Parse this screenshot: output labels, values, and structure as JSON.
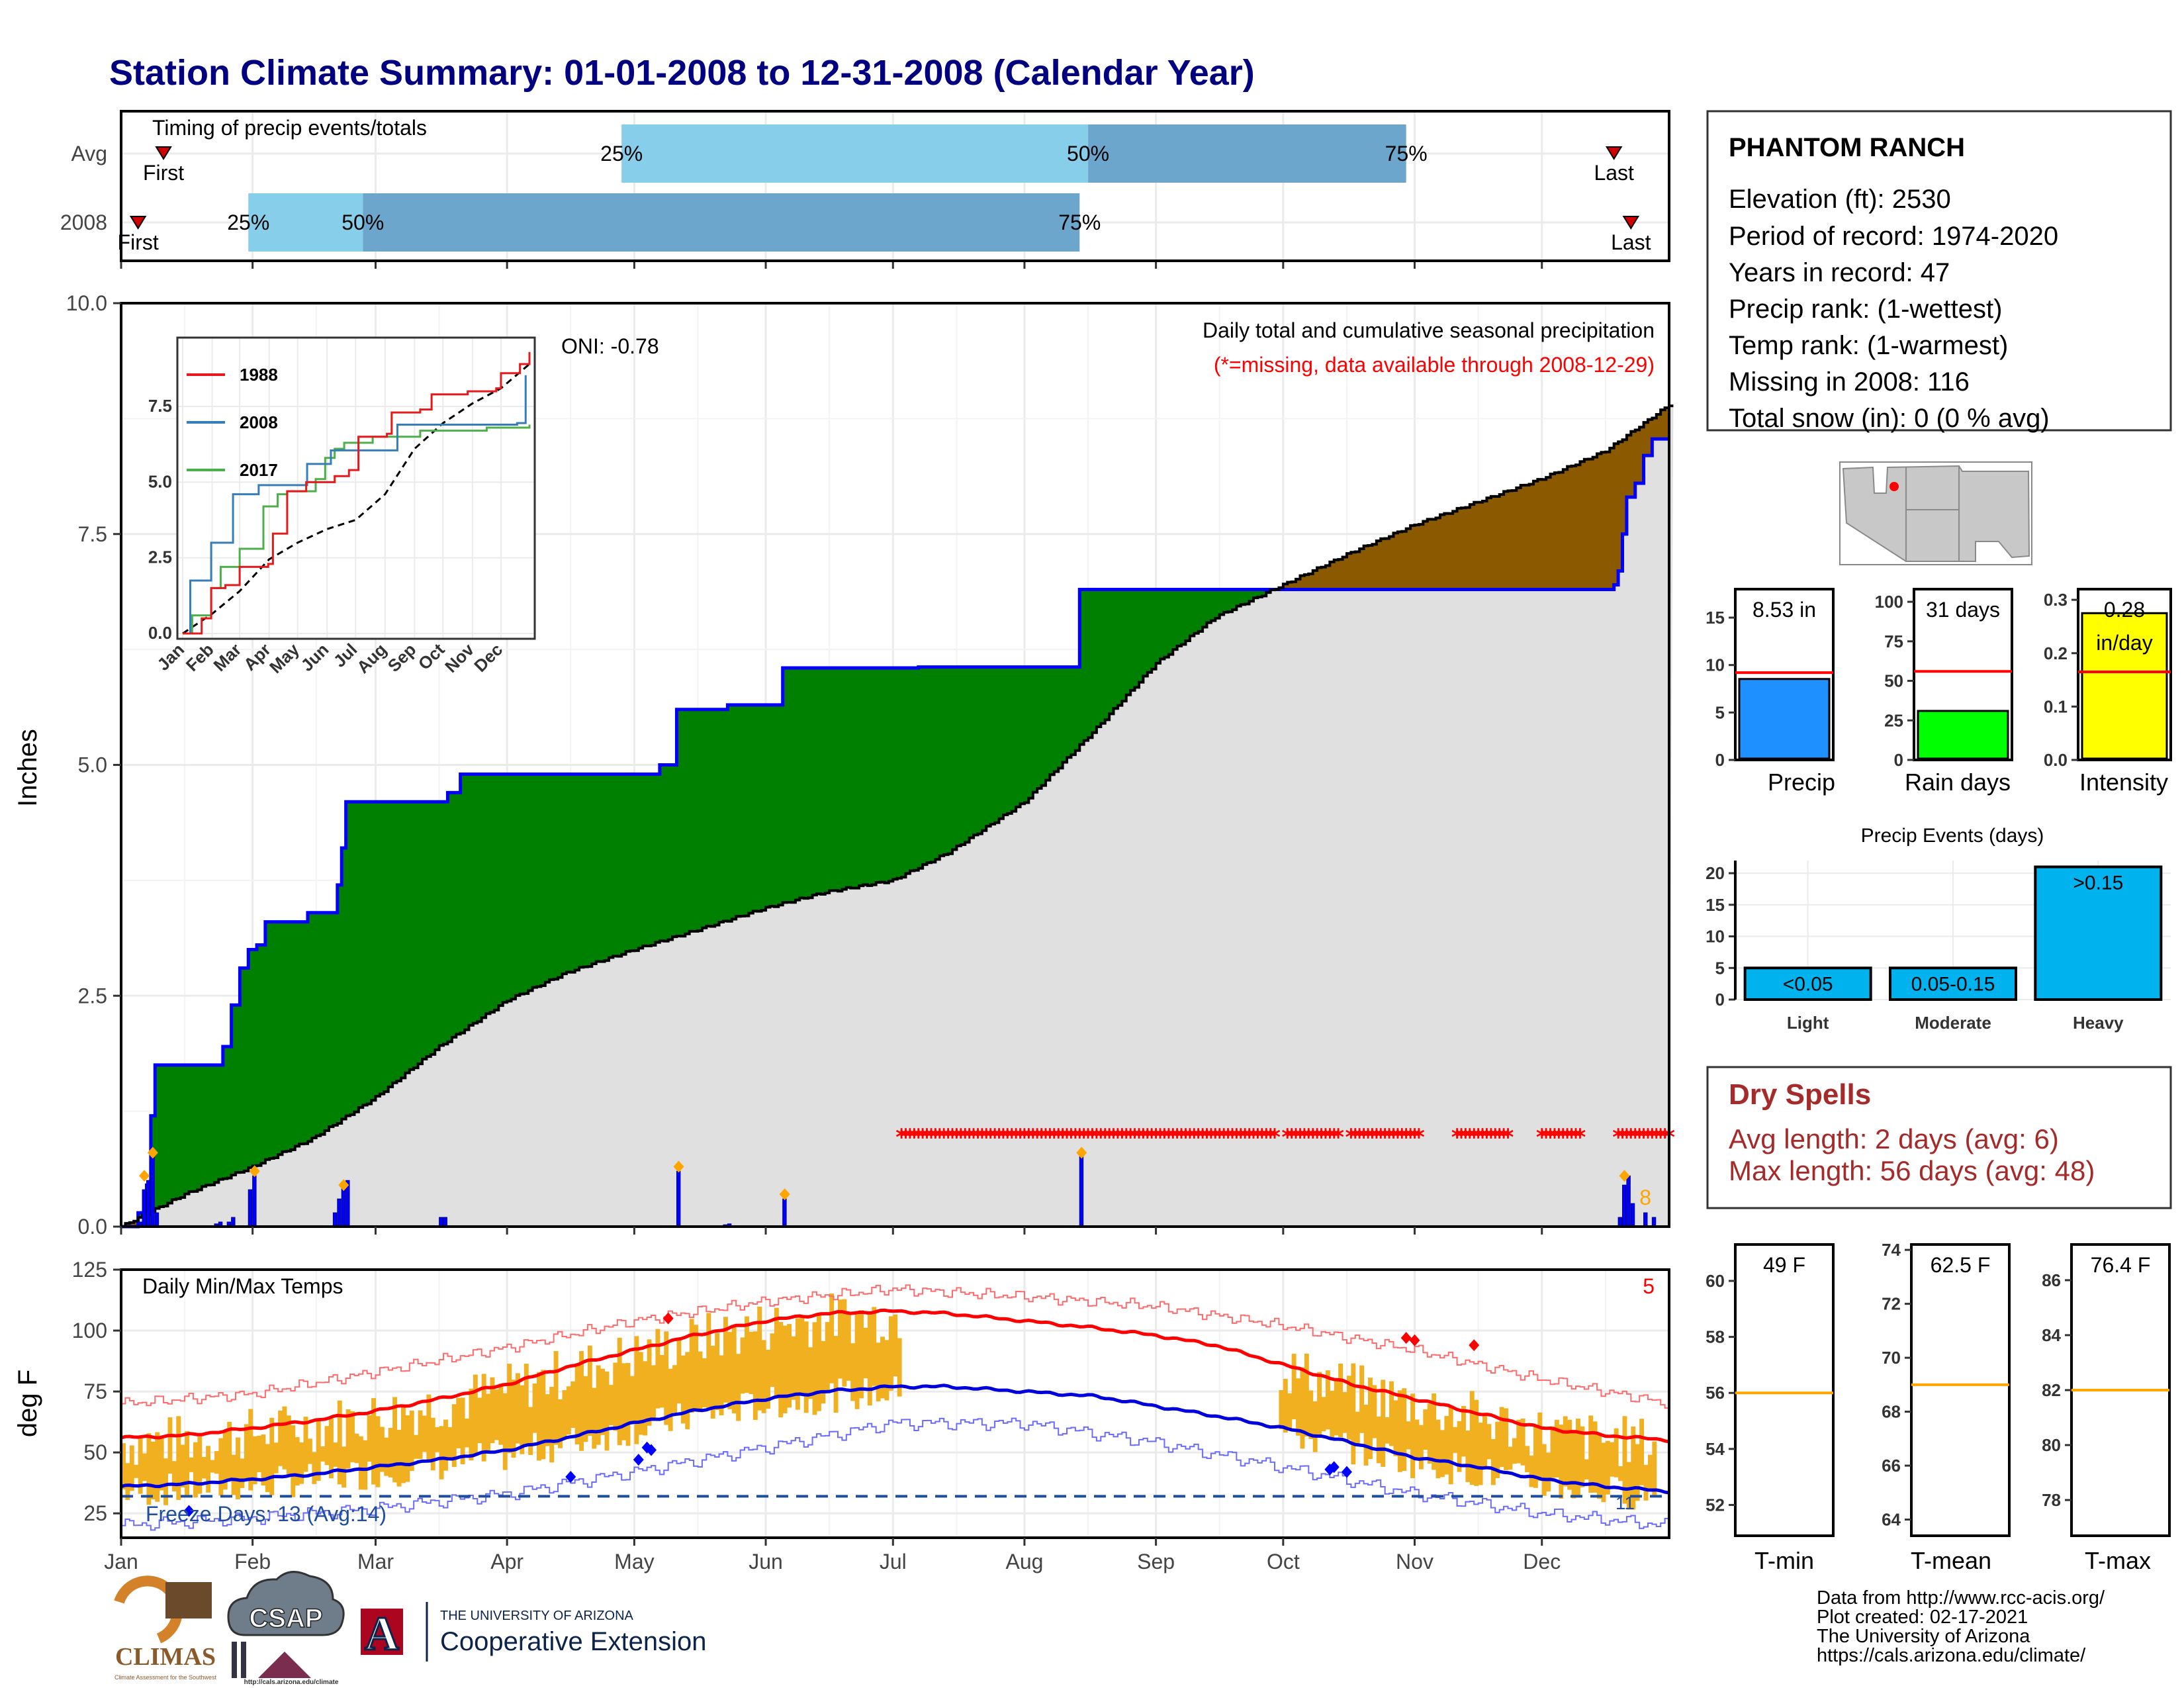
{
  "title": "Station Climate Summary: 01-01-2008 to 12-31-2008 (Calendar Year)",
  "colors": {
    "title": "#000080",
    "green": "#008000",
    "brown": "#8b5a00",
    "grey": "#e0e0e0",
    "blue": "#0000ff",
    "dry": "#a52a2a",
    "light_blue": "#87ceeb",
    "mid_blue": "#6ca6cd",
    "bar_orange": "#f0b020"
  },
  "timing": {
    "title": "Timing of precip events/totals",
    "rows": [
      {
        "label": "Avg",
        "first_day": 10,
        "p25": 118,
        "p50": 228,
        "p75": 303,
        "last_day": 352,
        "first_text": "First",
        "last_text": "Last"
      },
      {
        "label": "2008",
        "first_day": 4,
        "p25": 30,
        "p50": 57,
        "p75": 226,
        "last_day": 356,
        "first_text": "First",
        "last_text": "Last"
      }
    ],
    "pct_labels": [
      "25%",
      "50%",
      "75%"
    ]
  },
  "chart_data": [
    {
      "type": "area",
      "name": "precip",
      "title": "Daily total and cumulative seasonal precipitation",
      "subtitle": "(*=missing, data available through 2008-12-29)",
      "ylabel": "Inches",
      "ylim": [
        0,
        10
      ],
      "yticks": [
        "0.0",
        "2.5",
        "5.0",
        "7.5",
        "10.0"
      ],
      "oni": "ONI: -0.78",
      "corner_count": "8",
      "cumulative_2008_steps": [
        [
          0,
          0
        ],
        [
          4,
          0.15
        ],
        [
          6,
          0.45
        ],
        [
          7,
          1.2
        ],
        [
          8,
          1.75
        ],
        [
          22,
          1.75
        ],
        [
          24,
          1.95
        ],
        [
          26,
          2.4
        ],
        [
          28,
          2.8
        ],
        [
          30,
          3.0
        ],
        [
          32,
          3.05
        ],
        [
          34,
          3.3
        ],
        [
          43,
          3.3
        ],
        [
          44,
          3.4
        ],
        [
          50,
          3.4
        ],
        [
          51,
          3.7
        ],
        [
          52,
          4.1
        ],
        [
          53,
          4.6
        ],
        [
          76,
          4.6
        ],
        [
          77,
          4.7
        ],
        [
          80,
          4.9
        ],
        [
          126,
          4.9
        ],
        [
          127,
          5.0
        ],
        [
          131,
          5.6
        ],
        [
          141,
          5.6
        ],
        [
          143,
          5.65
        ],
        [
          155,
          5.65
        ],
        [
          156,
          6.05
        ],
        [
          186,
          6.05
        ],
        [
          188,
          6.06
        ],
        [
          225,
          6.06
        ],
        [
          226,
          6.9
        ],
        [
          352,
          6.95
        ],
        [
          353,
          7.1
        ],
        [
          354,
          7.5
        ],
        [
          355,
          7.9
        ],
        [
          357,
          8.05
        ],
        [
          359,
          8.35
        ],
        [
          361,
          8.53
        ]
      ],
      "cumulative_avg": [
        [
          0,
          0
        ],
        [
          15,
          0.35
        ],
        [
          31,
          0.65
        ],
        [
          45,
          0.95
        ],
        [
          60,
          1.4
        ],
        [
          75,
          1.95
        ],
        [
          91,
          2.45
        ],
        [
          105,
          2.75
        ],
        [
          121,
          3.0
        ],
        [
          135,
          3.2
        ],
        [
          152,
          3.45
        ],
        [
          166,
          3.62
        ],
        [
          182,
          3.75
        ],
        [
          195,
          4.05
        ],
        [
          213,
          4.6
        ],
        [
          230,
          5.4
        ],
        [
          244,
          6.1
        ],
        [
          258,
          6.6
        ],
        [
          274,
          6.95
        ],
        [
          290,
          7.3
        ],
        [
          305,
          7.6
        ],
        [
          320,
          7.85
        ],
        [
          335,
          8.1
        ],
        [
          350,
          8.4
        ],
        [
          365,
          8.9
        ]
      ],
      "daily_bars": [
        [
          4,
          0.05
        ],
        [
          5,
          0.4
        ],
        [
          6,
          0.5
        ],
        [
          7,
          0.75
        ],
        [
          8,
          0.15
        ],
        [
          22,
          0.03
        ],
        [
          23,
          0.05
        ],
        [
          25,
          0.05
        ],
        [
          26,
          0.1
        ],
        [
          30,
          0.4
        ],
        [
          31,
          0.55
        ],
        [
          50,
          0.15
        ],
        [
          51,
          0.3
        ],
        [
          52,
          0.45
        ],
        [
          53,
          0.5
        ],
        [
          75,
          0.1
        ],
        [
          76,
          0.1
        ],
        [
          131,
          0.6
        ],
        [
          142,
          0.02
        ],
        [
          143,
          0.03
        ],
        [
          156,
          0.3
        ],
        [
          226,
          0.8
        ],
        [
          353,
          0.1
        ],
        [
          354,
          0.45
        ],
        [
          355,
          0.55
        ],
        [
          356,
          0.25
        ],
        [
          359,
          0.15
        ],
        [
          361,
          0.1
        ]
      ],
      "diamonds": [
        [
          5,
          0.55
        ],
        [
          7,
          0.8
        ],
        [
          31,
          0.6
        ],
        [
          52,
          0.45
        ],
        [
          131,
          0.65
        ],
        [
          156,
          0.35
        ],
        [
          226,
          0.8
        ],
        [
          354,
          0.55
        ]
      ],
      "missing_stars": [
        [
          184,
          272
        ],
        [
          275,
          287
        ],
        [
          290,
          306
        ],
        [
          315,
          327
        ],
        [
          335,
          344
        ],
        [
          353,
          361
        ],
        [
          362,
          365
        ]
      ],
      "inset": {
        "legend": [
          "1988",
          "2008",
          "2017"
        ],
        "legend_colors": [
          "#e41a1c",
          "#377eb8",
          "#4daf4a"
        ],
        "yticks": [
          "0.0",
          "2.5",
          "5.0",
          "7.5"
        ],
        "xticks": [
          "Jan",
          "Feb",
          "Mar",
          "Apr",
          "May",
          "Jun",
          "Jul",
          "Aug",
          "Sep",
          "Oct",
          "Nov",
          "Dec"
        ],
        "series_1988": [
          [
            0,
            0
          ],
          [
            20,
            0.5
          ],
          [
            30,
            1.5
          ],
          [
            45,
            1.6
          ],
          [
            60,
            2.2
          ],
          [
            90,
            2.3
          ],
          [
            95,
            3.3
          ],
          [
            110,
            4.7
          ],
          [
            130,
            5.0
          ],
          [
            160,
            5.2
          ],
          [
            175,
            5.4
          ],
          [
            185,
            6.5
          ],
          [
            215,
            6.6
          ],
          [
            220,
            7.3
          ],
          [
            250,
            7.4
          ],
          [
            262,
            7.9
          ],
          [
            300,
            8.0
          ],
          [
            330,
            8.1
          ],
          [
            335,
            8.6
          ],
          [
            355,
            8.9
          ],
          [
            365,
            9.3
          ]
        ],
        "series_2008": [
          [
            0,
            0
          ],
          [
            8,
            1.75
          ],
          [
            30,
            3.0
          ],
          [
            53,
            4.6
          ],
          [
            80,
            4.9
          ],
          [
            131,
            5.6
          ],
          [
            156,
            6.05
          ],
          [
            226,
            6.9
          ],
          [
            352,
            6.95
          ],
          [
            361,
            8.53
          ]
        ],
        "series_2017": [
          [
            0,
            0
          ],
          [
            10,
            0.6
          ],
          [
            30,
            1.5
          ],
          [
            40,
            2.2
          ],
          [
            60,
            2.8
          ],
          [
            85,
            4.2
          ],
          [
            100,
            4.6
          ],
          [
            110,
            4.7
          ],
          [
            140,
            5.1
          ],
          [
            150,
            5.8
          ],
          [
            160,
            6.1
          ],
          [
            170,
            6.3
          ],
          [
            200,
            6.5
          ],
          [
            250,
            6.7
          ],
          [
            320,
            6.8
          ],
          [
            365,
            6.9
          ]
        ],
        "series_avg": [
          [
            0,
            0
          ],
          [
            31,
            0.65
          ],
          [
            60,
            1.4
          ],
          [
            91,
            2.45
          ],
          [
            121,
            3.0
          ],
          [
            152,
            3.45
          ],
          [
            182,
            3.75
          ],
          [
            213,
            4.6
          ],
          [
            244,
            6.1
          ],
          [
            274,
            6.95
          ],
          [
            305,
            7.6
          ],
          [
            335,
            8.1
          ],
          [
            365,
            8.9
          ]
        ]
      }
    },
    {
      "type": "line",
      "name": "temps",
      "title": "Daily Min/Max Temps",
      "ylabel": "deg F",
      "ylim": [
        15,
        125
      ],
      "yticks": [
        "25",
        "50",
        "75",
        "100",
        "125"
      ],
      "xticks": [
        "Jan",
        "Feb",
        "Mar",
        "Apr",
        "May",
        "Jun",
        "Jul",
        "Aug",
        "Sep",
        "Oct",
        "Nov",
        "Dec"
      ],
      "freeze_text": "Freeze Days: 13 (Avg:14)",
      "freeze_line": 32,
      "corner_count": "5",
      "bottom_count": "11",
      "avg_max": [
        [
          0,
          56
        ],
        [
          15,
          57
        ],
        [
          31,
          60
        ],
        [
          45,
          63
        ],
        [
          60,
          67
        ],
        [
          75,
          72
        ],
        [
          91,
          78
        ],
        [
          105,
          85
        ],
        [
          121,
          92
        ],
        [
          135,
          98
        ],
        [
          152,
          104
        ],
        [
          166,
          107
        ],
        [
          182,
          108
        ],
        [
          195,
          107
        ],
        [
          213,
          104
        ],
        [
          230,
          101
        ],
        [
          244,
          98
        ],
        [
          258,
          94
        ],
        [
          274,
          86
        ],
        [
          290,
          78
        ],
        [
          305,
          72
        ],
        [
          320,
          66
        ],
        [
          335,
          60
        ],
        [
          350,
          57
        ],
        [
          365,
          55
        ]
      ],
      "avg_min": [
        [
          0,
          36
        ],
        [
          15,
          37
        ],
        [
          31,
          39
        ],
        [
          45,
          41
        ],
        [
          60,
          44
        ],
        [
          75,
          47
        ],
        [
          91,
          51
        ],
        [
          105,
          56
        ],
        [
          121,
          62
        ],
        [
          135,
          67
        ],
        [
          152,
          72
        ],
        [
          166,
          75
        ],
        [
          182,
          77
        ],
        [
          195,
          77
        ],
        [
          213,
          75
        ],
        [
          230,
          73
        ],
        [
          244,
          69
        ],
        [
          258,
          65
        ],
        [
          274,
          60
        ],
        [
          290,
          54
        ],
        [
          305,
          48
        ],
        [
          320,
          44
        ],
        [
          335,
          39
        ],
        [
          350,
          36
        ],
        [
          365,
          34
        ]
      ],
      "rec_max": [
        [
          0,
          70
        ],
        [
          31,
          74
        ],
        [
          60,
          83
        ],
        [
          91,
          93
        ],
        [
          121,
          104
        ],
        [
          152,
          112
        ],
        [
          182,
          117
        ],
        [
          213,
          114
        ],
        [
          244,
          110
        ],
        [
          274,
          102
        ],
        [
          305,
          92
        ],
        [
          335,
          80
        ],
        [
          365,
          70
        ]
      ],
      "rec_min": [
        [
          0,
          20
        ],
        [
          31,
          23
        ],
        [
          60,
          27
        ],
        [
          91,
          33
        ],
        [
          121,
          42
        ],
        [
          152,
          52
        ],
        [
          182,
          62
        ],
        [
          213,
          62
        ],
        [
          244,
          54
        ],
        [
          274,
          44
        ],
        [
          305,
          33
        ],
        [
          335,
          25
        ],
        [
          365,
          20
        ]
      ],
      "missing_ranges": [
        [
          184,
          272
        ]
      ],
      "max_diamonds": [
        [
          129,
          105
        ],
        [
          303,
          97
        ],
        [
          305,
          96
        ],
        [
          319,
          94
        ]
      ],
      "min_diamonds": [
        [
          16,
          26
        ],
        [
          106,
          40
        ],
        [
          122,
          47
        ],
        [
          124,
          52
        ],
        [
          125,
          51
        ],
        [
          285,
          43
        ],
        [
          286,
          44
        ],
        [
          289,
          42
        ]
      ]
    },
    {
      "type": "bar",
      "name": "precip_total",
      "value_label": "8.53 in",
      "xlabel": "Precip",
      "value": 8.53,
      "avg": 9.2,
      "ylim": [
        0,
        18
      ],
      "yticks": [
        "0",
        "5",
        "10",
        "15"
      ],
      "color": "#1e90ff"
    },
    {
      "type": "bar",
      "name": "rain_days",
      "value_label": "31 days",
      "xlabel": "Rain days",
      "value": 31,
      "avg": 56,
      "ylim": [
        0,
        108
      ],
      "yticks": [
        "0",
        "25",
        "50",
        "75",
        "100"
      ],
      "color": "#00ff00"
    },
    {
      "type": "bar",
      "name": "intensity",
      "value_label": "0.28",
      "value_label2": "in/day",
      "xlabel": "Intensity",
      "value": 0.275,
      "avg": 0.165,
      "ylim": [
        0,
        0.32
      ],
      "yticks": [
        "0.0",
        "0.1",
        "0.2",
        "0.3"
      ],
      "color": "#ffff00"
    },
    {
      "type": "bar",
      "name": "precip_events",
      "title": "Precip Events (days)",
      "categories": [
        "Light",
        "Moderate",
        "Heavy"
      ],
      "bar_labels": [
        "<0.05",
        "0.05-0.15",
        ">0.15"
      ],
      "values": [
        5,
        5,
        21
      ],
      "ylim": [
        0,
        22
      ],
      "yticks": [
        "0",
        "5",
        "10",
        "15",
        "20"
      ],
      "color": "#00b2ee"
    },
    {
      "type": "bar",
      "name": "tmin",
      "value_label": "49 F",
      "xlabel": "T-min",
      "value": 49,
      "avg": 56,
      "ylim": [
        50.9,
        61.3
      ],
      "yticks": [
        "52",
        "54",
        "56",
        "58",
        "60"
      ]
    },
    {
      "type": "bar",
      "name": "tmean",
      "value_label": "62.5 F",
      "xlabel": "T-mean",
      "value": 62.5,
      "avg": 69,
      "ylim": [
        63.4,
        74.2
      ],
      "yticks": [
        "64",
        "66",
        "68",
        "70",
        "72",
        "74"
      ]
    },
    {
      "type": "bar",
      "name": "tmax",
      "value_label": "76.4 F",
      "xlabel": "T-max",
      "value": 76.4,
      "avg": 82,
      "ylim": [
        76.7,
        87.3
      ],
      "yticks": [
        "78",
        "80",
        "82",
        "84",
        "86"
      ]
    }
  ],
  "station": {
    "name": "PHANTOM RANCH",
    "lines": [
      "Elevation (ft): 2530",
      "Period of record: 1974-2020",
      "Years in record: 47",
      "Precip rank:  (1-wettest)",
      "Temp rank:  (1-warmest)",
      "Missing in 2008: 116",
      "Total snow (in): 0 (0 % avg)"
    ]
  },
  "dry_spells": {
    "title": "Dry Spells",
    "avg": "Avg length: 2 days (avg: 6)",
    "max": "Max length: 56 days (avg: 48)"
  },
  "footer": {
    "credits": [
      "Data from http://www.rcc-acis.org/",
      "Plot created: 02-17-2021",
      "The University of Arizona",
      "https://cals.arizona.edu/climate/"
    ],
    "logo_climas": "CLIMAS",
    "logo_climas_sub": "Climate Assessment for the Southwest",
    "logo_csap": "CSAP",
    "logo_csap_url": "http://cals.arizona.edu/climate",
    "ua_top": "THE UNIVERSITY OF ARIZONA",
    "ua_bottom": "Cooperative Extension",
    "ua_letter": "A"
  }
}
